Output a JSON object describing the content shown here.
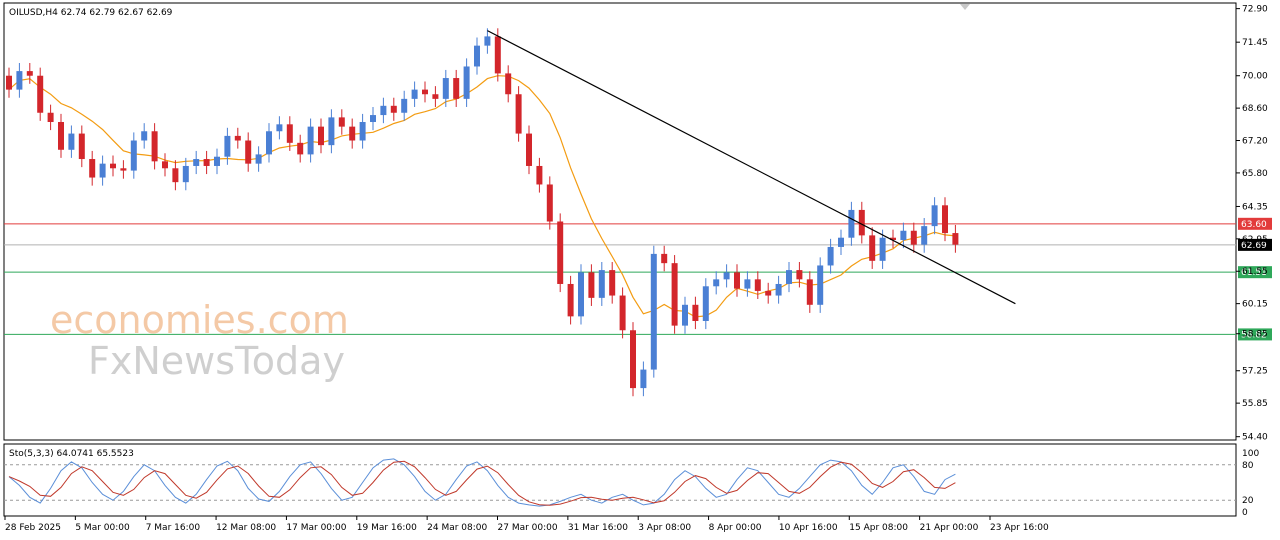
{
  "chart_data": {
    "type": "candlestick",
    "symbol_header": "OILUSD,H4  62.74 62.79 62.67 62.69",
    "ylim": [
      54.3,
      73.1
    ],
    "y_ticks": [
      "72.90",
      "71.45",
      "70.00",
      "68.60",
      "67.20",
      "65.80",
      "64.35",
      "62.95",
      "61.55",
      "60.15",
      "58.85",
      "57.25",
      "55.85",
      "54.40"
    ],
    "x_ticks": [
      "28 Feb 2025",
      "5 Mar 00:00",
      "7 Mar 16:00",
      "12 Mar 08:00",
      "17 Mar 00:00",
      "19 Mar 16:00",
      "24 Mar 08:00",
      "27 Mar 00:00",
      "31 Mar 16:00",
      "3 Apr 08:00",
      "8 Apr 00:00",
      "10 Apr 16:00",
      "15 Apr 08:00",
      "21 Apr 00:00",
      "23 Apr 16:00"
    ],
    "current_price": {
      "label": "62.69",
      "value": 62.69
    },
    "horizontal_levels": [
      {
        "label": "63.60",
        "value": 63.6,
        "color": "#e23b3b"
      },
      {
        "label": "61.51",
        "value": 61.51,
        "color": "#2fa85a"
      },
      {
        "label": "58.82",
        "value": 58.82,
        "color": "#2fa85a"
      }
    ],
    "trendline": {
      "from": [
        46,
        71.95
      ],
      "to": [
        91,
        61.1
      ],
      "color": "#000000"
    },
    "moving_average_color": "#f39c12",
    "candle_colors": {
      "up": "#4a7fd4",
      "down": "#d3262b"
    },
    "candles": [
      [
        0,
        70.0,
        69.4
      ],
      [
        1,
        69.4,
        70.2
      ],
      [
        2,
        70.2,
        70.0
      ],
      [
        3,
        70.0,
        68.4
      ],
      [
        4,
        68.4,
        68.0
      ],
      [
        5,
        68.0,
        66.8
      ],
      [
        6,
        66.8,
        67.5
      ],
      [
        7,
        67.5,
        66.4
      ],
      [
        8,
        66.4,
        65.6
      ],
      [
        9,
        65.6,
        66.2
      ],
      [
        10,
        66.2,
        66.0
      ],
      [
        11,
        66.0,
        65.9
      ],
      [
        12,
        65.9,
        67.2
      ],
      [
        13,
        67.2,
        67.6
      ],
      [
        14,
        67.6,
        66.3
      ],
      [
        15,
        66.3,
        66.0
      ],
      [
        16,
        66.0,
        65.4
      ],
      [
        17,
        65.4,
        66.1
      ],
      [
        18,
        66.1,
        66.4
      ],
      [
        19,
        66.4,
        66.1
      ],
      [
        20,
        66.1,
        66.5
      ],
      [
        21,
        66.5,
        67.4
      ],
      [
        22,
        67.4,
        67.2
      ],
      [
        23,
        67.2,
        66.2
      ],
      [
        24,
        66.2,
        66.6
      ],
      [
        25,
        66.6,
        67.6
      ],
      [
        26,
        67.6,
        67.9
      ],
      [
        27,
        67.9,
        67.1
      ],
      [
        28,
        67.1,
        66.6
      ],
      [
        29,
        66.6,
        67.8
      ],
      [
        30,
        67.8,
        67.0
      ],
      [
        31,
        67.0,
        68.2
      ],
      [
        32,
        68.2,
        67.8
      ],
      [
        33,
        67.8,
        67.2
      ],
      [
        34,
        67.2,
        68.0
      ],
      [
        35,
        68.0,
        68.3
      ],
      [
        36,
        68.3,
        68.7
      ],
      [
        37,
        68.7,
        68.4
      ],
      [
        38,
        68.4,
        69.0
      ],
      [
        39,
        69.0,
        69.4
      ],
      [
        40,
        69.4,
        69.2
      ],
      [
        41,
        69.2,
        69.0
      ],
      [
        42,
        69.0,
        69.9
      ],
      [
        43,
        69.9,
        69.0
      ],
      [
        44,
        69.0,
        70.4
      ],
      [
        45,
        70.4,
        71.3
      ],
      [
        46,
        71.3,
        71.7
      ],
      [
        47,
        71.7,
        70.1
      ],
      [
        48,
        70.1,
        69.2
      ],
      [
        49,
        69.2,
        67.5
      ],
      [
        50,
        67.5,
        66.1
      ],
      [
        51,
        66.1,
        65.3
      ],
      [
        52,
        65.3,
        63.7
      ],
      [
        53,
        63.7,
        61.0
      ],
      [
        54,
        61.0,
        59.6
      ],
      [
        55,
        59.6,
        61.5
      ],
      [
        56,
        61.5,
        60.4
      ],
      [
        57,
        60.4,
        61.6
      ],
      [
        58,
        61.6,
        60.5
      ],
      [
        59,
        60.5,
        59.0
      ],
      [
        60,
        59.0,
        56.5
      ],
      [
        61,
        56.5,
        57.3
      ],
      [
        62,
        57.3,
        62.3
      ],
      [
        63,
        62.3,
        61.9
      ],
      [
        64,
        61.9,
        59.2
      ],
      [
        65,
        59.2,
        60.1
      ],
      [
        66,
        60.1,
        59.4
      ],
      [
        67,
        59.4,
        60.9
      ],
      [
        68,
        60.9,
        61.2
      ],
      [
        69,
        61.2,
        61.5
      ],
      [
        70,
        61.5,
        60.8
      ],
      [
        71,
        60.8,
        61.2
      ],
      [
        72,
        61.2,
        60.7
      ],
      [
        73,
        60.7,
        60.5
      ],
      [
        74,
        60.5,
        61.0
      ],
      [
        75,
        61.0,
        61.6
      ],
      [
        76,
        61.6,
        61.2
      ],
      [
        77,
        61.2,
        60.1
      ],
      [
        78,
        60.1,
        61.8
      ],
      [
        79,
        61.8,
        62.6
      ],
      [
        80,
        62.6,
        63.0
      ],
      [
        81,
        63.0,
        64.2
      ],
      [
        82,
        64.2,
        63.1
      ],
      [
        83,
        63.1,
        62.0
      ],
      [
        84,
        62.0,
        63.0
      ],
      [
        85,
        63.0,
        62.9
      ],
      [
        86,
        62.9,
        63.3
      ],
      [
        87,
        63.3,
        62.7
      ],
      [
        88,
        62.7,
        63.5
      ],
      [
        89,
        63.5,
        64.4
      ],
      [
        90,
        64.4,
        63.2
      ],
      [
        91,
        63.2,
        62.7
      ]
    ],
    "stochastic": {
      "label": "Sto(5,3,3) 64.0741 65.5523",
      "ylim": [
        0,
        100
      ],
      "levels": [
        80,
        20
      ],
      "tick_labels": [
        "100",
        "80",
        "20",
        "0"
      ],
      "main_color": "#5b8fd8",
      "signal_color": "#c0392b",
      "values": [
        60,
        45,
        25,
        15,
        40,
        70,
        85,
        75,
        50,
        30,
        20,
        35,
        60,
        80,
        70,
        45,
        25,
        15,
        30,
        55,
        78,
        86,
        70,
        40,
        22,
        18,
        35,
        60,
        80,
        85,
        65,
        40,
        20,
        25,
        50,
        75,
        88,
        90,
        80,
        60,
        35,
        20,
        30,
        55,
        78,
        85,
        70,
        45,
        25,
        15,
        12,
        10,
        12,
        18,
        25,
        30,
        20,
        15,
        25,
        30,
        20,
        12,
        15,
        30,
        55,
        70,
        60,
        40,
        25,
        30,
        55,
        75,
        70,
        50,
        30,
        25,
        40,
        60,
        80,
        88,
        85,
        70,
        45,
        30,
        50,
        75,
        80,
        60,
        35,
        30,
        55,
        64
      ]
    }
  },
  "watermark": {
    "line1": "economies.com",
    "line2": "FxNewsToday"
  }
}
